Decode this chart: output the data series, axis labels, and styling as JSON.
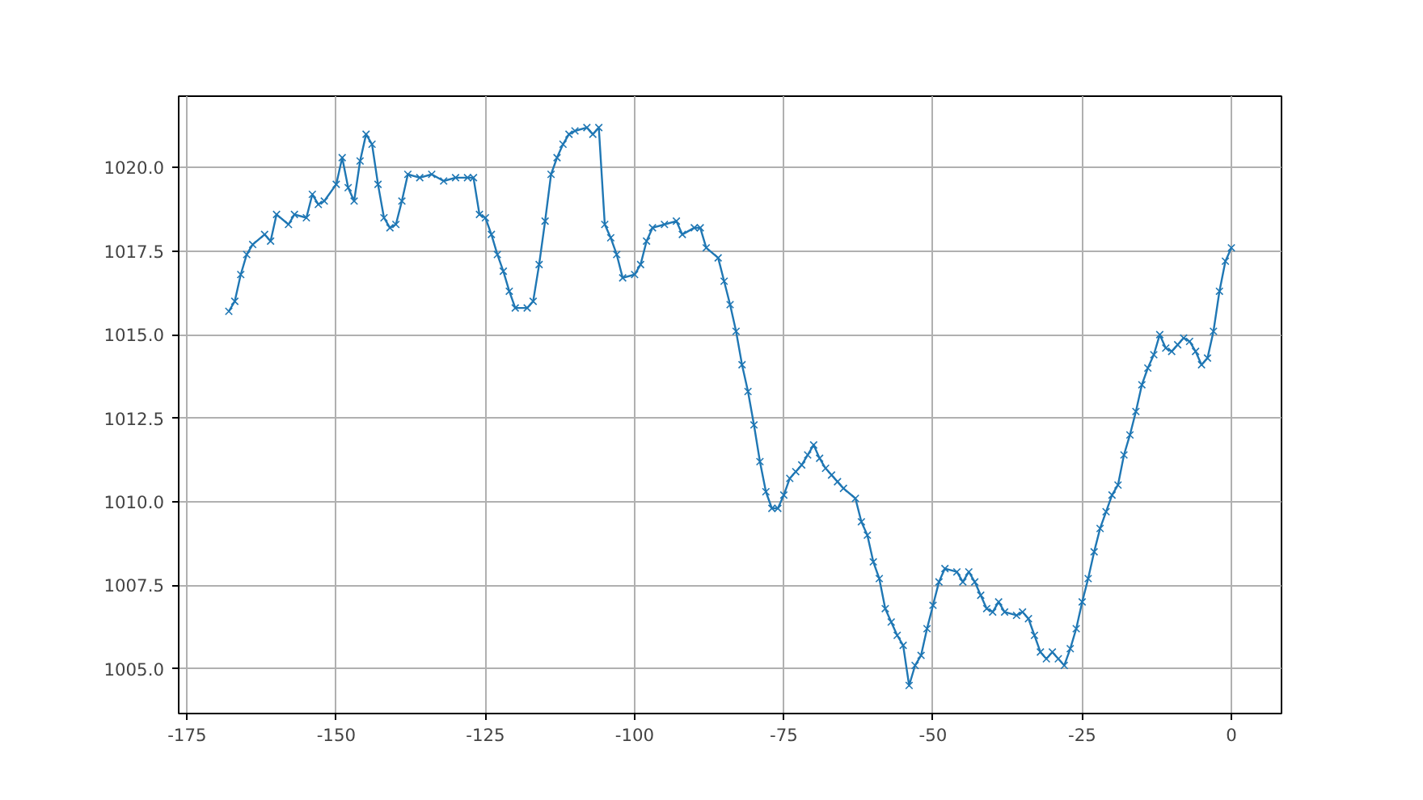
{
  "chart_data": {
    "type": "line",
    "x": [
      -168,
      -167,
      -166,
      -165,
      -164,
      -162,
      -161,
      -160,
      -158,
      -157,
      -155,
      -154,
      -153,
      -152,
      -150,
      -149,
      -148,
      -147,
      -146,
      -145,
      -144,
      -143,
      -142,
      -141,
      -140,
      -139,
      -138,
      -136,
      -134,
      -132,
      -130,
      -128,
      -127,
      -126,
      -125,
      -124,
      -123,
      -122,
      -121,
      -120,
      -118,
      -117,
      -116,
      -115,
      -114,
      -113,
      -112,
      -111,
      -110,
      -108,
      -107,
      -106,
      -105,
      -104,
      -103,
      -102,
      -100,
      -99,
      -98,
      -97,
      -95,
      -93,
      -92,
      -90,
      -89,
      -88,
      -86,
      -85,
      -84,
      -83,
      -82,
      -81,
      -80,
      -79,
      -78,
      -77,
      -76,
      -75,
      -74,
      -73,
      -72,
      -71,
      -70,
      -69,
      -68,
      -67,
      -66,
      -65,
      -63,
      -62,
      -61,
      -60,
      -59,
      -58,
      -57,
      -56,
      -55,
      -54,
      -53,
      -52,
      -51,
      -50,
      -49,
      -48,
      -46,
      -45,
      -44,
      -43,
      -42,
      -41,
      -40,
      -39,
      -38,
      -36,
      -35,
      -34,
      -33,
      -32,
      -31,
      -30,
      -29,
      -28,
      -27,
      -26,
      -25,
      -24,
      -23,
      -22,
      -21,
      -20,
      -19,
      -18,
      -17,
      -16,
      -15,
      -14,
      -13,
      -12,
      -11,
      -10,
      -9,
      -8,
      -7,
      -6,
      -5,
      -4,
      -3,
      -2,
      -1,
      0
    ],
    "series": [
      {
        "color": "#1f77b4",
        "values": [
          1015.7,
          1016.0,
          1016.8,
          1017.4,
          1017.7,
          1018.0,
          1017.8,
          1018.6,
          1018.3,
          1018.6,
          1018.5,
          1019.2,
          1018.9,
          1019.0,
          1019.5,
          1020.3,
          1019.4,
          1019.0,
          1020.2,
          1021.0,
          1020.7,
          1019.5,
          1018.5,
          1018.2,
          1018.3,
          1019.0,
          1019.8,
          1019.7,
          1019.8,
          1019.6,
          1019.7,
          1019.7,
          1019.7,
          1018.6,
          1018.5,
          1018.0,
          1017.4,
          1016.9,
          1016.3,
          1015.8,
          1015.8,
          1016.0,
          1017.1,
          1018.4,
          1019.8,
          1020.3,
          1020.7,
          1021.0,
          1021.1,
          1021.2,
          1021.0,
          1021.2,
          1018.3,
          1017.9,
          1017.4,
          1016.7,
          1016.8,
          1017.1,
          1017.8,
          1018.2,
          1018.3,
          1018.4,
          1018.0,
          1018.2,
          1018.2,
          1017.6,
          1017.3,
          1016.6,
          1015.9,
          1015.1,
          1014.1,
          1013.3,
          1012.3,
          1011.2,
          1010.3,
          1009.8,
          1009.8,
          1010.2,
          1010.7,
          1010.9,
          1011.1,
          1011.4,
          1011.7,
          1011.3,
          1011.0,
          1010.8,
          1010.6,
          1010.4,
          1010.1,
          1009.4,
          1009.0,
          1008.2,
          1007.7,
          1006.8,
          1006.4,
          1006.0,
          1005.7,
          1004.5,
          1005.1,
          1005.4,
          1006.2,
          1006.9,
          1007.6,
          1008.0,
          1007.9,
          1007.6,
          1007.9,
          1007.6,
          1007.2,
          1006.8,
          1006.7,
          1007.0,
          1006.7,
          1006.6,
          1006.7,
          1006.5,
          1006.0,
          1005.5,
          1005.3,
          1005.5,
          1005.3,
          1005.1,
          1005.6,
          1006.2,
          1007.0,
          1007.7,
          1008.5,
          1009.2,
          1009.7,
          1010.2,
          1010.5,
          1011.4,
          1012.0,
          1012.7,
          1013.5,
          1014.0,
          1014.4,
          1015.0,
          1014.6,
          1014.5,
          1014.7,
          1014.9,
          1014.8,
          1014.5,
          1014.1,
          1014.3,
          1015.1,
          1016.3,
          1017.2,
          1017.6
        ]
      }
    ],
    "xlim": [
      -176.4,
      8.4
    ],
    "ylim": [
      1003.66,
      1022.14
    ],
    "xticks": [
      -175,
      -150,
      -125,
      -100,
      -75,
      -50,
      -25,
      0
    ],
    "yticks": [
      {
        "value": 1005,
        "label": "1005.0"
      },
      {
        "value": 1007.5,
        "label": "1007.5"
      },
      {
        "value": 1010,
        "label": "1010.0"
      },
      {
        "value": 1012.5,
        "label": "1012.5"
      },
      {
        "value": 1015,
        "label": "1015.0"
      },
      {
        "value": 1017.5,
        "label": "1017.5"
      },
      {
        "value": 1020,
        "label": "1020.0"
      }
    ],
    "grid": true,
    "marker": "cross",
    "line_style": "solid"
  }
}
